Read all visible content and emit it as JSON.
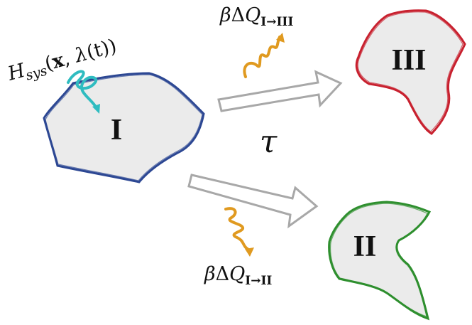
{
  "regions": [
    {
      "id": "I",
      "label": "I",
      "color": "#2c4793",
      "fill": "#ebebeb"
    },
    {
      "id": "II",
      "label": "II",
      "color": "#2e8f2e",
      "fill": "#ebebeb"
    },
    {
      "id": "III",
      "label": "III",
      "color": "#c8202e",
      "fill": "#ebebeb"
    }
  ],
  "hamiltonian": {
    "H": "H",
    "subscript": "sys",
    "open": "(",
    "x": "x",
    "comma": ", ",
    "lambda": "λ",
    "t": "(t)",
    "close": ")",
    "wave_color": "#2fbcc0"
  },
  "heat_upper": {
    "beta": "β",
    "delta": "Δ",
    "Q": "Q",
    "subscript": "I→III",
    "wave_color": "#e09a20"
  },
  "heat_lower": {
    "beta": "β",
    "delta": "Δ",
    "Q": "Q",
    "subscript": "I→II",
    "wave_color": "#e09a20"
  },
  "tau": "τ",
  "arrow_color": "#a8a8a8"
}
